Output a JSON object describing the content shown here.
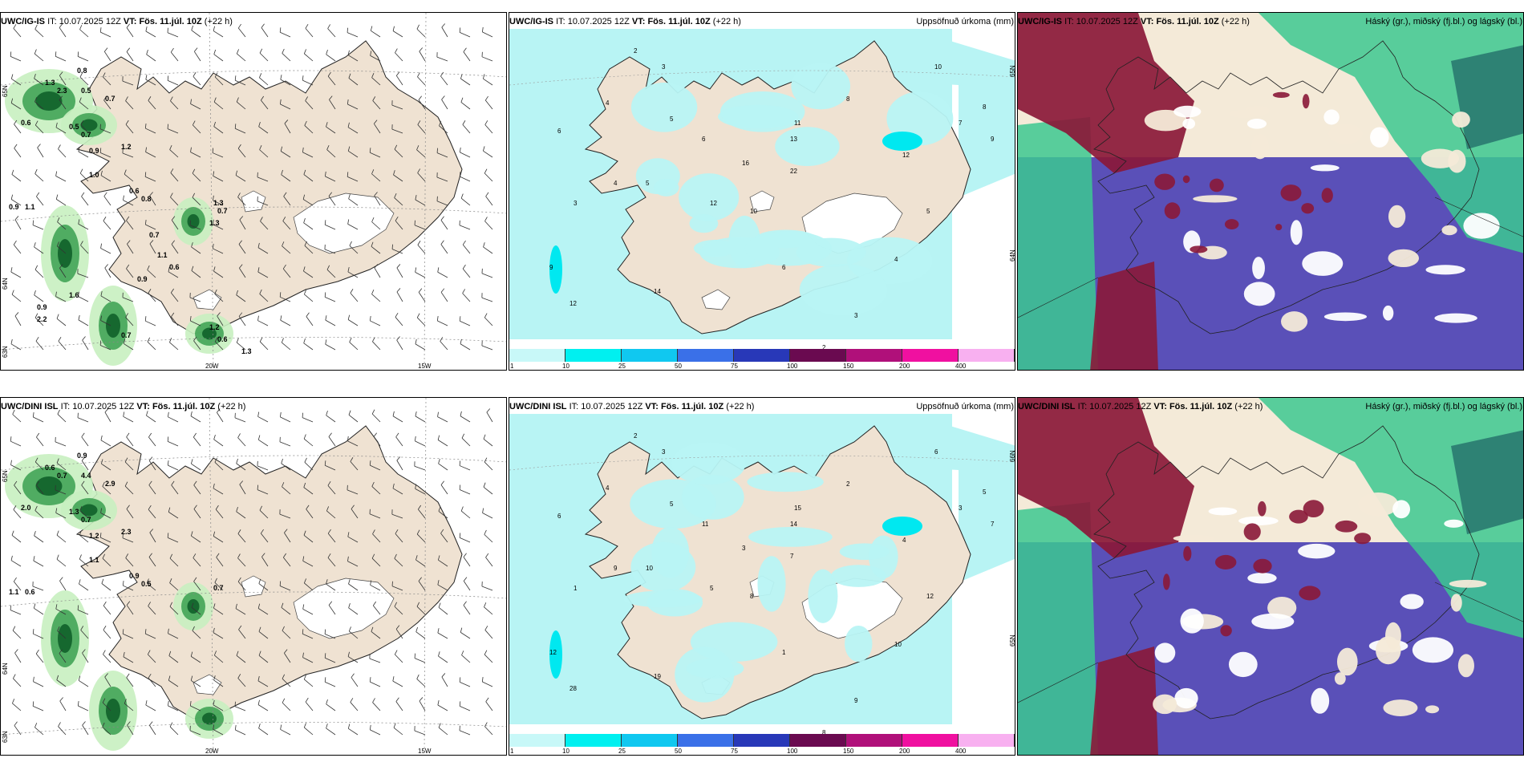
{
  "rows": [
    {
      "model": "UWC/IG-IS",
      "panels": [
        {
          "type": "wind",
          "model": "UWC/IG-IS",
          "it_label": "IT:",
          "it": "10.07.2025 12Z",
          "vt_label": "VT:",
          "vt": "Fös. 11.júl. 10Z",
          "lead": "(+22 h)",
          "right": "",
          "values": [
            "0.8",
            "1.3",
            "2.3",
            "0.5",
            "0.7",
            "0.6",
            "0.5",
            "0.7",
            "1.2",
            "0.9",
            "1.0",
            "0.6",
            "0.8",
            "0.9",
            "1.1",
            "1.3",
            "0.7",
            "1.3",
            "0.7",
            "1.1",
            "0.6",
            "0.9",
            "0.9",
            "2.2",
            "1.6",
            "0.7",
            "1.2",
            "0.6",
            "1.3"
          ],
          "axis": {
            "lat": [
              "65N",
              "64N",
              "63N"
            ],
            "lon": [
              "20W",
              "15W"
            ]
          }
        },
        {
          "type": "precip",
          "model": "UWC/IG-IS",
          "it_label": "IT:",
          "it": "10.07.2025 12Z",
          "vt_label": "VT:",
          "vt": "Fös. 11.júl. 10Z",
          "lead": "(+22 h)",
          "right": "Uppsöfnuð úrkoma (mm)",
          "values": [
            "2",
            "3",
            "4",
            "5",
            "6",
            "3",
            "4",
            "5",
            "6",
            "10",
            "9",
            "12",
            "14",
            "11",
            "13",
            "22",
            "16",
            "12",
            "10",
            "12",
            "8",
            "6",
            "2",
            "3",
            "4",
            "5",
            "7",
            "8",
            "9"
          ],
          "axis": {
            "lat": [
              "65N",
              "64N"
            ]
          }
        },
        {
          "type": "cloud",
          "model": "UWC/IG-IS",
          "it_label": "IT:",
          "it": "10.07.2025 12Z",
          "vt_label": "VT:",
          "vt": "Fös. 11.júl. 10Z",
          "lead": "(+22 h)",
          "right": "Háský (gr.), miðský (fj.bl.) og lágský (bl.)"
        }
      ]
    },
    {
      "model": "UWC/DINI ISL",
      "panels": [
        {
          "type": "wind",
          "model": "UWC/DINI ISL",
          "it_label": "IT:",
          "it": "10.07.2025 12Z",
          "vt_label": "VT:",
          "vt": "Fös. 11.júl. 10Z",
          "lead": "(+22 h)",
          "right": "",
          "values": [
            "0.9",
            "0.6",
            "0.7",
            "4.4",
            "2.9",
            "2.0",
            "1.3",
            "0.7",
            "2.3",
            "1.2",
            "1.1",
            "0.9",
            "0.5",
            "1.1",
            "0.6",
            "0.7"
          ],
          "axis": {
            "lat": [
              "65N",
              "64N",
              "63N"
            ],
            "lon": [
              "20W",
              "15W"
            ]
          }
        },
        {
          "type": "precip",
          "model": "UWC/DINI ISL",
          "it_label": "IT:",
          "it": "10.07.2025 12Z",
          "vt_label": "VT:",
          "vt": "Fös. 11.júl. 10Z",
          "lead": "(+22 h)",
          "right": "Uppsöfnuð úrkoma (mm)",
          "values": [
            "2",
            "3",
            "4",
            "5",
            "6",
            "1",
            "9",
            "10",
            "11",
            "8",
            "12",
            "28",
            "19",
            "15",
            "14",
            "7",
            "3",
            "5",
            "6",
            "4",
            "2",
            "1",
            "8",
            "9",
            "10",
            "12",
            "3",
            "5",
            "7"
          ],
          "axis": {
            "lat": [
              "66N",
              "65N"
            ]
          }
        },
        {
          "type": "cloud",
          "model": "UWC/DINI ISL",
          "it_label": "IT:",
          "it": "10.07.2025 12Z",
          "vt_label": "VT:",
          "vt": "Fös. 11.júl. 10Z",
          "lead": "(+22 h)",
          "right": "Háský (gr.), miðský (fj.bl.) og lágský (bl.)"
        }
      ]
    }
  ],
  "colorbar": {
    "ticks": [
      "1",
      "10",
      "25",
      "50",
      "75",
      "100",
      "150",
      "200",
      "400"
    ],
    "colors": [
      "#c8f8f8",
      "#00f0f0",
      "#10c8f0",
      "#3a70e8",
      "#2838b8",
      "#6a0a50",
      "#b0107a",
      "#f010a0",
      "#f8b0f0"
    ]
  },
  "colors": {
    "land": "#efe2d2",
    "ice": "#ffffff",
    "green_light": "#c8f0c0",
    "green": "#3aa050",
    "green_dark": "#10602a",
    "cyan_light": "#b8f4f4",
    "cloud_high": "#3cc890",
    "cloud_mid": "#8a1838",
    "cloud_low": "#5a50b8"
  }
}
